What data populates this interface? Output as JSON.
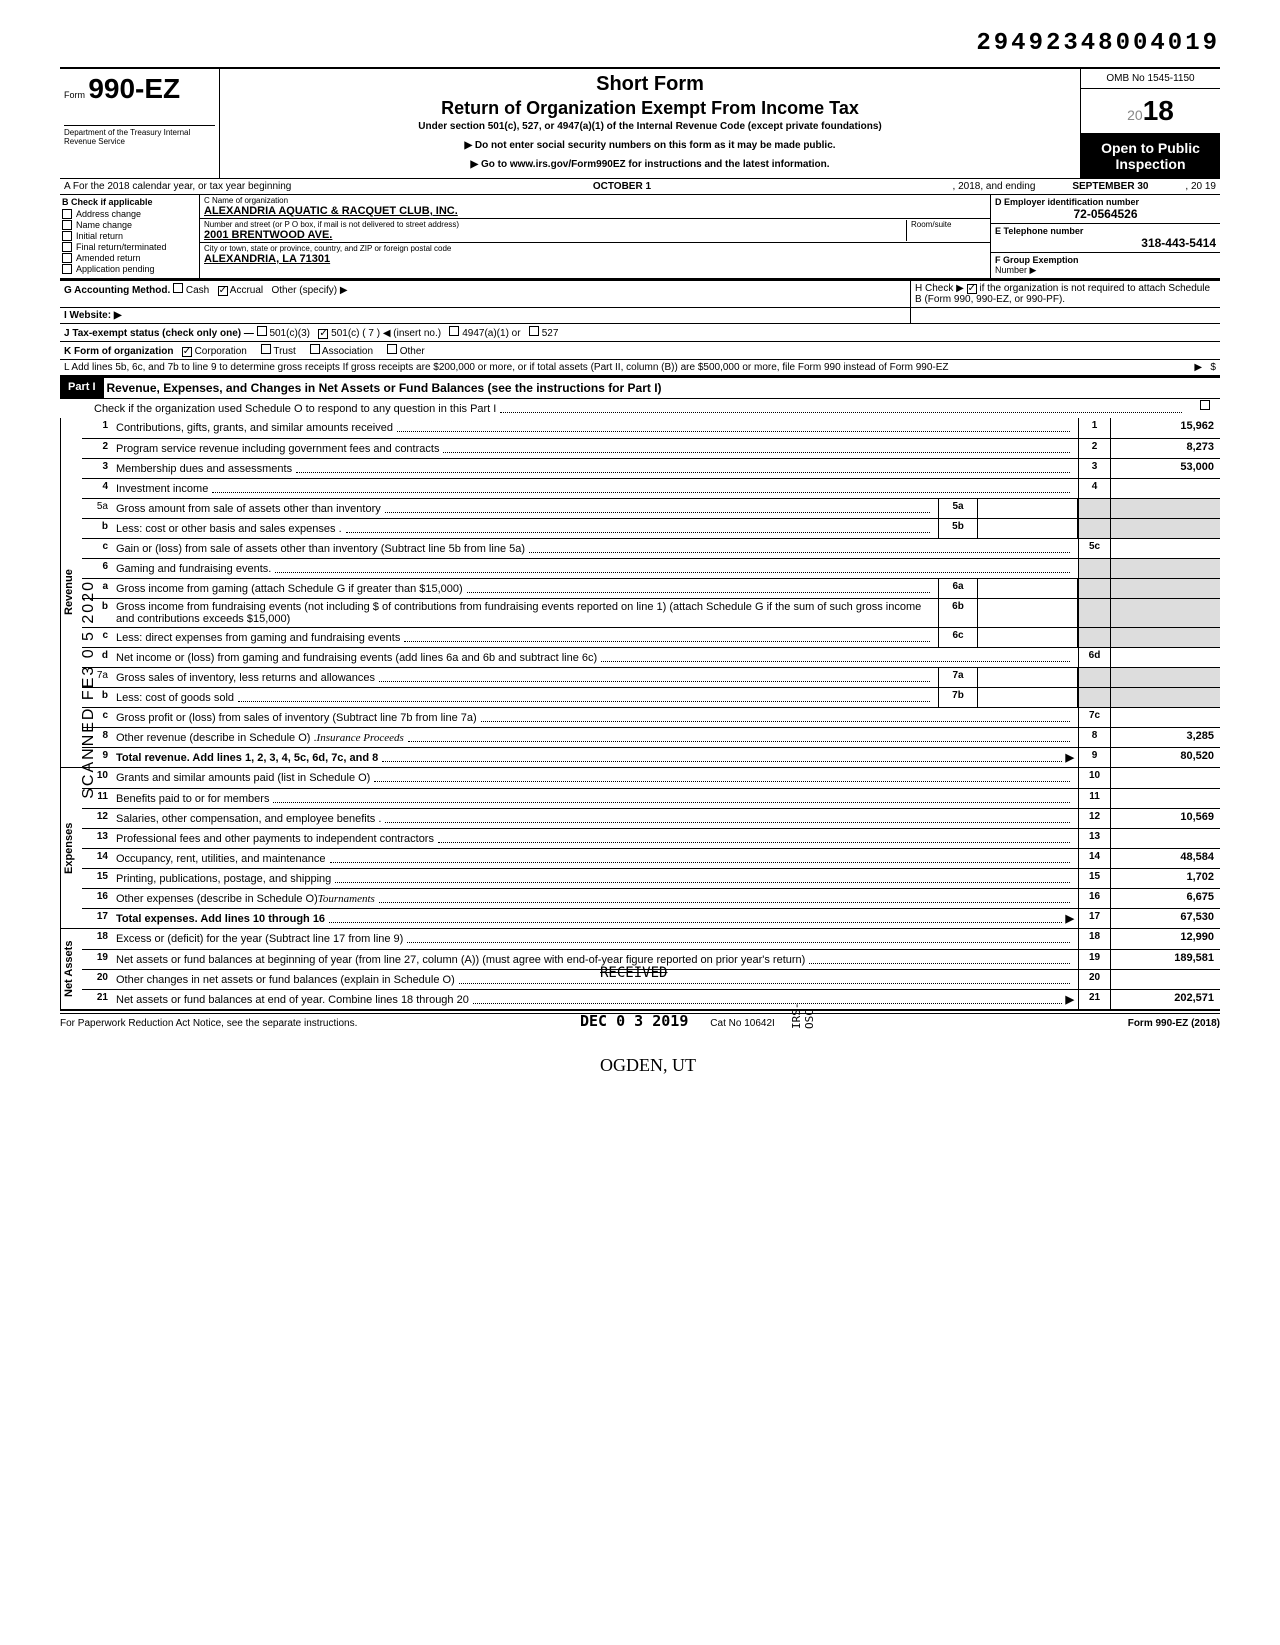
{
  "top_code": "29492348004019",
  "header": {
    "form_prefix": "Form",
    "form_number": "990-EZ",
    "dept": "Department of the Treasury\nInternal Revenue Service",
    "title1": "Short Form",
    "title2": "Return of Organization Exempt From Income Tax",
    "subtitle": "Under section 501(c), 527, or 4947(a)(1) of the Internal Revenue Code (except private foundations)",
    "note1": "▶ Do not enter social security numbers on this form as it may be made public.",
    "note2": "▶ Go to www.irs.gov/Form990EZ for instructions and the latest information.",
    "omb": "OMB No 1545-1150",
    "year_prefix": "20",
    "year": "18",
    "inspection1": "Open to Public",
    "inspection2": "Inspection"
  },
  "lineA": {
    "prefix": "A  For the 2018 calendar year, or tax year beginning",
    "begin": "OCTOBER 1",
    "mid": ", 2018, and ending",
    "end": "SEPTEMBER 30",
    "suffix": ", 20  19"
  },
  "boxB": {
    "title": "B  Check if applicable",
    "items": [
      "Address change",
      "Name change",
      "Initial return",
      "Final return/terminated",
      "Amended return",
      "Application pending"
    ]
  },
  "boxC": {
    "name_label": "C  Name of organization",
    "name": "ALEXANDRIA AQUATIC & RACQUET CLUB, INC.",
    "street_label": "Number and street (or P O  box, if mail is not delivered to street address)",
    "room_label": "Room/suite",
    "street": "2001 BRENTWOOD AVE.",
    "city_label": "City or town, state or province, country, and ZIP or foreign postal code",
    "city": "ALEXANDRIA, LA  71301"
  },
  "boxD": {
    "label": "D Employer identification number",
    "value": "72-0564526"
  },
  "boxE": {
    "label": "E  Telephone number",
    "value": "318-443-5414"
  },
  "boxF": {
    "label": "F  Group Exemption",
    "sub": "Number ▶"
  },
  "lineG": {
    "label": "G  Accounting Method.",
    "opt1": "Cash",
    "opt2": "Accrual",
    "opt3": "Other (specify) ▶",
    "checked": "Accrual"
  },
  "lineH": {
    "text": "H  Check ▶",
    "text2": "if the organization is not required to attach Schedule B (Form 990, 990-EZ, or 990-PF)."
  },
  "lineI": {
    "label": "I  Website: ▶"
  },
  "lineJ": {
    "label": "J  Tax-exempt status (check only one) —",
    "opt_3": "501(c)(3)",
    "opt_c": "501(c) (  7  ) ◀ (insert no.)",
    "opt_4947": "4947(a)(1) or",
    "opt_527": "527"
  },
  "lineK": {
    "label": "K  Form of organization",
    "opt1": "Corporation",
    "opt2": "Trust",
    "opt3": "Association",
    "opt4": "Other"
  },
  "lineL": "L  Add lines 5b, 6c, and 7b to line 9 to determine gross receipts  If gross receipts are $200,000 or more, or if total assets (Part II, column (B)) are $500,000 or more, file Form 990 instead of Form 990-EZ",
  "part1": {
    "label": "Part I",
    "title": "Revenue, Expenses, and Changes in Net Assets or Fund Balances (see the instructions for Part I)",
    "check_line": "Check if the organization used Schedule O to respond to any question in this Part I"
  },
  "sections": {
    "revenue": "Revenue",
    "expenses": "Expenses",
    "netassets": "Net Assets"
  },
  "rows": [
    {
      "n": "1",
      "d": "Contributions, gifts, grants, and similar amounts received",
      "box": "1",
      "v": "15,962"
    },
    {
      "n": "2",
      "d": "Program service revenue including government fees and contracts",
      "box": "2",
      "v": "8,273"
    },
    {
      "n": "3",
      "d": "Membership dues and assessments",
      "box": "3",
      "v": "53,000"
    },
    {
      "n": "4",
      "d": "Investment income",
      "box": "4",
      "v": ""
    },
    {
      "n": "5a",
      "d": "Gross amount from sale of assets other than inventory",
      "mid": "5a"
    },
    {
      "n": "b",
      "d": "Less: cost or other basis and sales expenses .",
      "mid": "5b"
    },
    {
      "n": "c",
      "d": "Gain or (loss) from sale of assets other than inventory (Subtract line 5b from line 5a)",
      "box": "5c",
      "v": ""
    },
    {
      "n": "6",
      "d": "Gaming and fundraising events."
    },
    {
      "n": "a",
      "d": "Gross income from gaming (attach Schedule G if greater than $15,000)",
      "mid": "6a"
    },
    {
      "n": "b",
      "d": "Gross income from fundraising events (not including  $                  of contributions from fundraising events reported on line 1) (attach Schedule G if the sum of such gross income and contributions exceeds $15,000)",
      "mid": "6b"
    },
    {
      "n": "c",
      "d": "Less: direct expenses from gaming and fundraising events",
      "mid": "6c"
    },
    {
      "n": "d",
      "d": "Net income or (loss) from gaming and fundraising events (add lines 6a and 6b and subtract line 6c)",
      "box": "6d",
      "v": ""
    },
    {
      "n": "7a",
      "d": "Gross sales of inventory, less returns and allowances",
      "mid": "7a"
    },
    {
      "n": "b",
      "d": "Less: cost of goods sold",
      "mid": "7b"
    },
    {
      "n": "c",
      "d": "Gross profit or (loss) from sales of inventory (Subtract line 7b from line 7a)",
      "box": "7c",
      "v": ""
    },
    {
      "n": "8",
      "d": "Other revenue (describe in Schedule O) .",
      "hand": "Insurance Proceeds",
      "box": "8",
      "v": "3,285"
    },
    {
      "n": "9",
      "d": "Total revenue. Add lines 1, 2, 3, 4, 5c, 6d, 7c, and 8",
      "box": "9",
      "v": "80,520",
      "bold": true,
      "arrow": true
    }
  ],
  "exp_rows": [
    {
      "n": "10",
      "d": "Grants and similar amounts paid (list in Schedule O)",
      "box": "10",
      "v": ""
    },
    {
      "n": "11",
      "d": "Benefits paid to or for members",
      "box": "11",
      "v": ""
    },
    {
      "n": "12",
      "d": "Salaries, other compensation, and employee benefits .",
      "box": "12",
      "v": "10,569"
    },
    {
      "n": "13",
      "d": "Professional fees and other payments to independent contractors",
      "box": "13",
      "v": ""
    },
    {
      "n": "14",
      "d": "Occupancy, rent, utilities, and maintenance",
      "box": "14",
      "v": "48,584"
    },
    {
      "n": "15",
      "d": "Printing, publications, postage, and shipping",
      "box": "15",
      "v": "1,702"
    },
    {
      "n": "16",
      "d": "Other expenses (describe in Schedule O)",
      "hand": "Tournaments",
      "box": "16",
      "v": "6,675"
    },
    {
      "n": "17",
      "d": "Total expenses. Add lines 10 through 16",
      "box": "17",
      "v": "67,530",
      "bold": true,
      "arrow": true
    }
  ],
  "net_rows": [
    {
      "n": "18",
      "d": "Excess or (deficit) for the year (Subtract line 17 from line 9)",
      "box": "18",
      "v": "12,990"
    },
    {
      "n": "19",
      "d": "Net assets or fund balances at beginning of year (from line 27, column (A)) (must agree with end-of-year figure reported on prior year's return)",
      "box": "19",
      "v": "189,581"
    },
    {
      "n": "20",
      "d": "Other changes in net assets or fund balances (explain in Schedule O)",
      "box": "20",
      "v": ""
    },
    {
      "n": "21",
      "d": "Net assets or fund balances at end of year. Combine lines 18 through 20",
      "box": "21",
      "v": "202,571",
      "arrow": true
    }
  ],
  "footer": {
    "left": "For Paperwork Reduction Act Notice, see the separate instructions.",
    "mid": "Cat  No  10642I",
    "right": "Form 990-EZ (2018)"
  },
  "stamps": {
    "received": "RECEIVED",
    "date": "DEC 0 3 2019",
    "ogden": "OGDEN, UT",
    "irs": "IRS-OSC",
    "scanned": "SCANNED FE3 0 5 2020"
  }
}
